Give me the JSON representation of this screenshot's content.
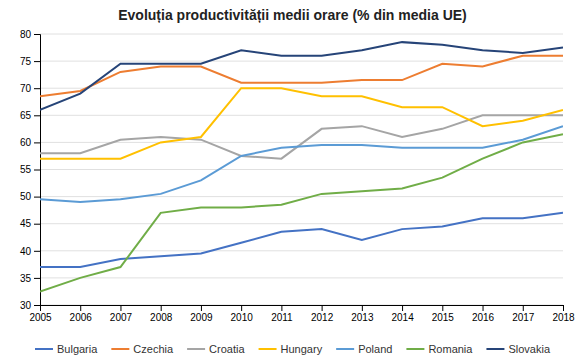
{
  "chart_data": {
    "type": "line",
    "title": "Evoluția productivității medii orare (% din media UE)",
    "x": [
      2005,
      2006,
      2007,
      2008,
      2009,
      2010,
      2011,
      2012,
      2013,
      2014,
      2015,
      2016,
      2017,
      2018
    ],
    "series": [
      {
        "name": "Bulgaria",
        "color": "#4472c4",
        "values": [
          37,
          37,
          38.5,
          39,
          39.5,
          41.5,
          43.5,
          44,
          42,
          44,
          44.5,
          46,
          46,
          47
        ]
      },
      {
        "name": "Czechia",
        "color": "#ed7d31",
        "values": [
          68.5,
          69.5,
          73,
          74,
          74,
          71,
          71,
          71,
          71.5,
          71.5,
          74.5,
          74,
          76,
          76
        ]
      },
      {
        "name": "Croatia",
        "color": "#a5a5a5",
        "values": [
          58,
          58,
          60.5,
          61,
          60.5,
          57.5,
          57,
          62.5,
          63,
          61,
          62.5,
          65,
          65,
          65
        ]
      },
      {
        "name": "Hungary",
        "color": "#ffc000",
        "values": [
          57,
          57,
          57,
          60,
          61,
          70,
          70,
          68.5,
          68.5,
          66.5,
          66.5,
          63,
          64,
          66
        ]
      },
      {
        "name": "Poland",
        "color": "#5b9bd5",
        "values": [
          49.5,
          49,
          49.5,
          50.5,
          53,
          57.5,
          59,
          59.5,
          59.5,
          59,
          59,
          59,
          60.5,
          63
        ]
      },
      {
        "name": "Romania",
        "color": "#70ad47",
        "values": [
          32.5,
          35,
          37,
          47,
          48,
          48,
          48.5,
          50.5,
          51,
          51.5,
          53.5,
          57,
          60,
          61.5
        ]
      },
      {
        "name": "Slovakia",
        "color": "#264478",
        "values": [
          66,
          69,
          74.5,
          74.5,
          74.5,
          77,
          76,
          76,
          77,
          78.5,
          78,
          77,
          76.5,
          77.5
        ]
      }
    ],
    "xlim": [
      2005,
      2018
    ],
    "xticks": [
      2005,
      2006,
      2007,
      2008,
      2009,
      2010,
      2011,
      2012,
      2013,
      2014,
      2015,
      2016,
      2017,
      2018
    ],
    "ylim": [
      30,
      80
    ],
    "yticks": [
      30,
      35,
      40,
      45,
      50,
      55,
      60,
      65,
      70,
      75,
      80
    ],
    "grid": true,
    "legend": "bottom"
  }
}
